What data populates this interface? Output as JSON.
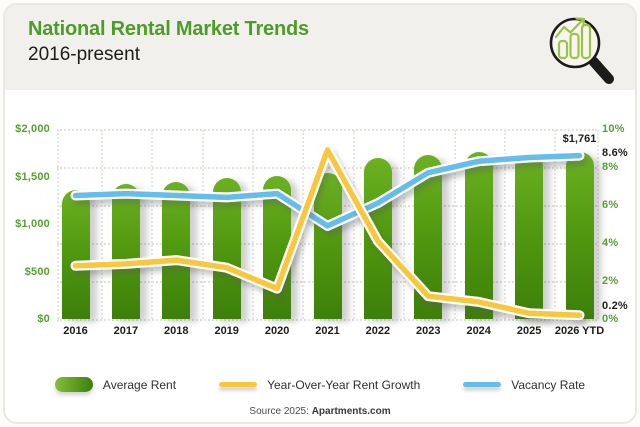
{
  "header": {
    "title": "National Rental Market Trends",
    "subtitle": "2016-present",
    "icon": "magnifier-over-bar-chart"
  },
  "chart_data": {
    "type": "bar",
    "title": "National Rental Market Trends",
    "subtitle": "2016-present",
    "categories": [
      "2016",
      "2017",
      "2018",
      "2019",
      "2020",
      "2021",
      "2022",
      "2023",
      "2024",
      "2025",
      "2026 YTD"
    ],
    "series": [
      {
        "name": "Average Rent",
        "type": "bar",
        "axis": "left",
        "values": [
          1360,
          1425,
          1445,
          1485,
          1505,
          1540,
          1695,
          1725,
          1755,
          1745,
          1761
        ]
      },
      {
        "name": "Year-Over-Year Rent Growth",
        "type": "line",
        "axis": "right",
        "values": [
          2.8,
          2.9,
          3.1,
          2.7,
          1.6,
          8.9,
          4.1,
          1.2,
          0.9,
          0.3,
          0.2
        ]
      },
      {
        "name": "Vacancy Rate",
        "type": "line",
        "axis": "right",
        "values": [
          6.5,
          6.6,
          6.5,
          6.4,
          6.6,
          4.9,
          6.1,
          7.7,
          8.3,
          8.5,
          8.6
        ]
      }
    ],
    "left_axis": {
      "min": 0,
      "max": 2000,
      "ticks": [
        {
          "label": "$2,000",
          "value": 2000
        },
        {
          "label": "$1,500",
          "value": 1500
        },
        {
          "label": "$1,000",
          "value": 1000
        },
        {
          "label": "$500",
          "value": 500
        },
        {
          "label": "$0",
          "value": 0
        }
      ]
    },
    "right_axis": {
      "min": 0,
      "max": 10,
      "ticks": [
        {
          "label": "10%",
          "value": 10
        },
        {
          "label": "8%",
          "value": 8
        },
        {
          "label": "6%",
          "value": 6
        },
        {
          "label": "4%",
          "value": 4
        },
        {
          "label": "2%",
          "value": 2
        },
        {
          "label": "0%",
          "value": 0
        }
      ]
    },
    "annotations": [
      {
        "text": "$1,761",
        "type": "bar-value",
        "index": 10
      },
      {
        "text": "8.6%",
        "type": "right-axis",
        "value": 8.6
      },
      {
        "text": "0.2%",
        "type": "right-axis",
        "value": 0.2
      }
    ],
    "legend_position": "bottom",
    "grid": "dotted"
  },
  "source": {
    "prefix": "Source 2025:",
    "name": "Apartments.com"
  },
  "colors": {
    "title_green": "#4e9c28",
    "axis_green": "#55a130",
    "bar_light": "#6cb122",
    "bar_dark": "#3d7f0a",
    "growth_line": "#f8c740",
    "vacancy_line": "#66bde9",
    "header_bg": "#f1f0ed"
  }
}
